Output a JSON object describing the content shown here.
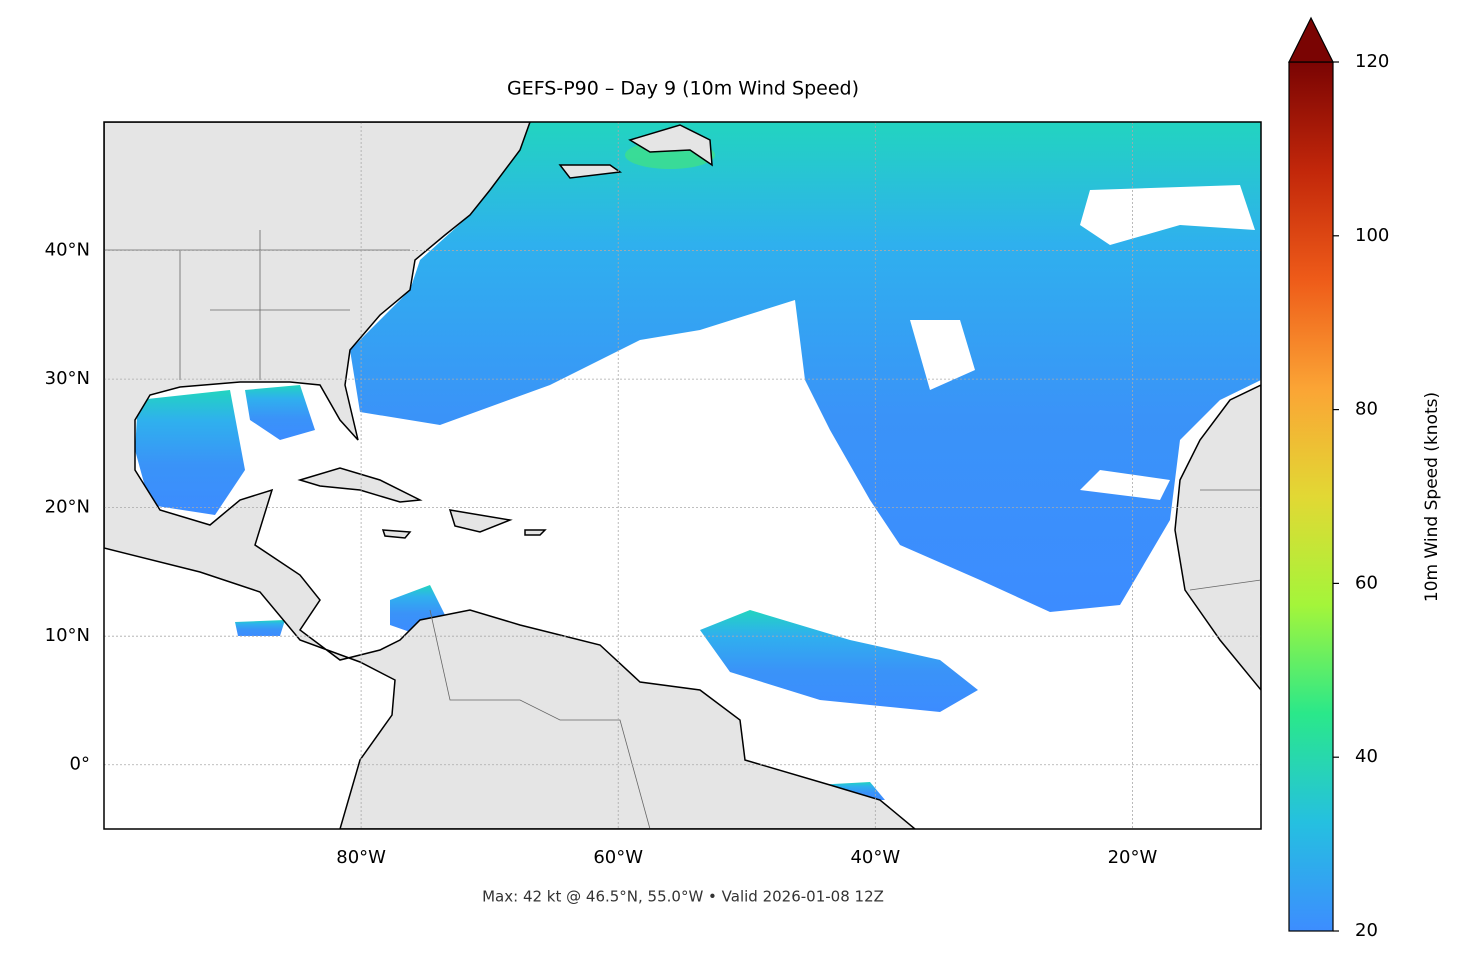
{
  "chart_data": {
    "type": "map",
    "title": "GEFS-P90 – Day 9 (10m Wind Speed)",
    "footer": "Max: 42 kt @ 46.5°N, 55.0°W • Valid 2026-01-08 12Z",
    "xlim": [
      -100,
      -10
    ],
    "ylim": [
      -5,
      50
    ],
    "xticks": [
      {
        "value": -80,
        "label": "80°W"
      },
      {
        "value": -60,
        "label": "60°W"
      },
      {
        "value": -40,
        "label": "40°W"
      },
      {
        "value": -20,
        "label": "20°W"
      }
    ],
    "yticks": [
      {
        "value": 0,
        "label": "0°"
      },
      {
        "value": 10,
        "label": "10°N"
      },
      {
        "value": 20,
        "label": "20°N"
      },
      {
        "value": 30,
        "label": "30°N"
      },
      {
        "value": 40,
        "label": "40°N"
      }
    ],
    "grid": true,
    "colorbar": {
      "label": "10m Wind Speed (knots)",
      "lim": [
        20,
        120
      ],
      "ticks": [
        20,
        40,
        60,
        80,
        100,
        120
      ],
      "extend": "max",
      "colors": [
        "#3d8dff",
        "#25c0e0",
        "#2ae88a",
        "#a4f53a",
        "#e2d834",
        "#fba435",
        "#ee5b19",
        "#c2270a",
        "#7a0403"
      ]
    }
  }
}
